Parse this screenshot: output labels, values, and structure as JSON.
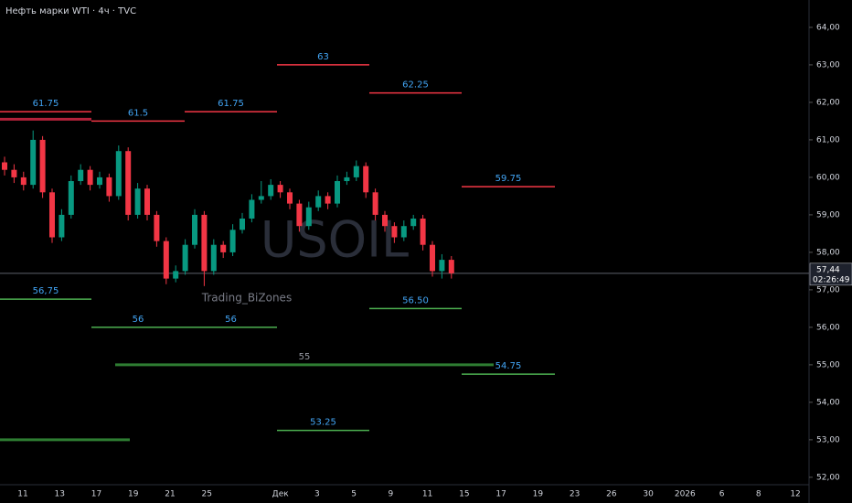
{
  "chart_data": {
    "type": "candlestick",
    "title": "Нефть марки WTI · 4ч · TVC",
    "watermark": "USOIL",
    "author": "Trading_BiZones",
    "categories": [
      "11",
      "13",
      "17",
      "19",
      "21",
      "25",
      null,
      "Дек",
      "3",
      "5",
      "9",
      "11",
      "15",
      "17",
      "19",
      "23",
      "26",
      "30",
      "2026",
      "6",
      "8",
      "12"
    ],
    "ylim": [
      51.68,
      64.73
    ],
    "yticks": [
      {
        "value": 52,
        "label": "52,00"
      },
      {
        "value": 53,
        "label": "53,00"
      },
      {
        "value": 54,
        "label": "54,00"
      },
      {
        "value": 55,
        "label": "55,00"
      },
      {
        "value": 56,
        "label": "56,00"
      },
      {
        "value": 57,
        "label": "57,00"
      },
      {
        "value": 58,
        "label": "58,00"
      },
      {
        "value": 59,
        "label": "59,00"
      },
      {
        "value": 60,
        "label": "60,00"
      },
      {
        "value": 61,
        "label": "61,00"
      },
      {
        "value": 62,
        "label": "62,00"
      },
      {
        "value": 63,
        "label": "63,00"
      },
      {
        "value": 64,
        "label": "64,00"
      }
    ],
    "up_color": "#089981",
    "down_color": "#f23645",
    "ohlc": [
      [
        60.4,
        60.55,
        60.05,
        60.2
      ],
      [
        60.2,
        60.35,
        59.85,
        60.0
      ],
      [
        60.0,
        60.15,
        59.65,
        59.8
      ],
      [
        59.8,
        61.25,
        59.7,
        61.0
      ],
      [
        61.0,
        61.1,
        59.45,
        59.6
      ],
      [
        59.6,
        59.7,
        58.25,
        58.4
      ],
      [
        58.4,
        59.15,
        58.3,
        59.0
      ],
      [
        59.0,
        60.05,
        58.9,
        59.9
      ],
      [
        59.9,
        60.35,
        59.8,
        60.2
      ],
      [
        60.2,
        60.3,
        59.65,
        59.8
      ],
      [
        59.8,
        60.15,
        59.7,
        60.0
      ],
      [
        60.0,
        60.1,
        59.35,
        59.5
      ],
      [
        59.5,
        60.85,
        59.4,
        60.7
      ],
      [
        60.7,
        60.8,
        58.85,
        59.0
      ],
      [
        59.0,
        59.85,
        58.9,
        59.7
      ],
      [
        59.7,
        59.8,
        58.85,
        59.0
      ],
      [
        59.0,
        59.1,
        58.15,
        58.3
      ],
      [
        58.3,
        58.4,
        57.15,
        57.3
      ],
      [
        57.3,
        57.65,
        57.2,
        57.5
      ],
      [
        57.5,
        58.35,
        57.4,
        58.2
      ],
      [
        58.2,
        59.15,
        58.1,
        59.0
      ],
      [
        59.0,
        59.1,
        57.1,
        57.5
      ],
      [
        57.5,
        58.35,
        57.4,
        58.2
      ],
      [
        58.2,
        58.3,
        57.85,
        58.0
      ],
      [
        58.0,
        58.75,
        57.9,
        58.6
      ],
      [
        58.6,
        59.05,
        58.5,
        58.9
      ],
      [
        58.9,
        59.55,
        58.8,
        59.4
      ],
      [
        59.4,
        59.9,
        59.3,
        59.5
      ],
      [
        59.5,
        59.95,
        59.4,
        59.8
      ],
      [
        59.8,
        59.9,
        59.45,
        59.6
      ],
      [
        59.6,
        59.7,
        59.15,
        59.3
      ],
      [
        59.3,
        59.4,
        58.55,
        58.7
      ],
      [
        58.7,
        59.35,
        58.6,
        59.2
      ],
      [
        59.2,
        59.65,
        59.1,
        59.5
      ],
      [
        59.5,
        59.6,
        59.15,
        59.3
      ],
      [
        59.3,
        60.05,
        59.2,
        59.9
      ],
      [
        59.9,
        60.15,
        59.8,
        60.0
      ],
      [
        60.0,
        60.45,
        59.9,
        60.3
      ],
      [
        60.3,
        60.4,
        59.45,
        59.6
      ],
      [
        59.6,
        59.7,
        58.85,
        59.0
      ],
      [
        59.0,
        59.1,
        58.55,
        58.7
      ],
      [
        58.7,
        58.8,
        58.25,
        58.4
      ],
      [
        58.4,
        58.85,
        58.3,
        58.7
      ],
      [
        58.7,
        59.0,
        58.6,
        58.9
      ],
      [
        58.9,
        59.0,
        58.05,
        58.2
      ],
      [
        58.2,
        58.3,
        57.35,
        57.5
      ],
      [
        57.5,
        57.95,
        57.3,
        57.8
      ],
      [
        57.8,
        57.9,
        57.3,
        57.44
      ]
    ],
    "levels": [
      {
        "value": 61.55,
        "color": "#b2223a"
      },
      {
        "value": 61.75,
        "label": "61.75",
        "color": "#f23645"
      },
      {
        "value": 61.5,
        "label": "61.5",
        "color": "#f23645"
      },
      {
        "value": 61.75,
        "label": "61.75",
        "color": "#f23645"
      },
      {
        "value": 63,
        "label": "63",
        "color": "#f23645"
      },
      {
        "value": 62.25,
        "label": "62.25",
        "color": "#f23645"
      },
      {
        "value": 59.75,
        "label": "59.75",
        "color": "#f23645"
      },
      {
        "value": 56.75,
        "label": "56,75",
        "color": "#4caf50"
      },
      {
        "value": 56,
        "label": "56",
        "color": "#4caf50"
      },
      {
        "value": 56,
        "label": "56",
        "color": "#4caf50"
      },
      {
        "value": 53.25,
        "label": "53.25",
        "color": "#4caf50"
      },
      {
        "value": 56.5,
        "label": "56.50",
        "color": "#4caf50"
      },
      {
        "value": 54.75,
        "label": "54.75",
        "color": "#4caf50"
      },
      {
        "value": 55,
        "label": "55",
        "color": "#2e7d32"
      },
      {
        "value": 53,
        "color": "#2e7d32"
      }
    ],
    "last_price": {
      "value": 57.44,
      "label": "57,44"
    },
    "countdown": "02:26:49"
  }
}
